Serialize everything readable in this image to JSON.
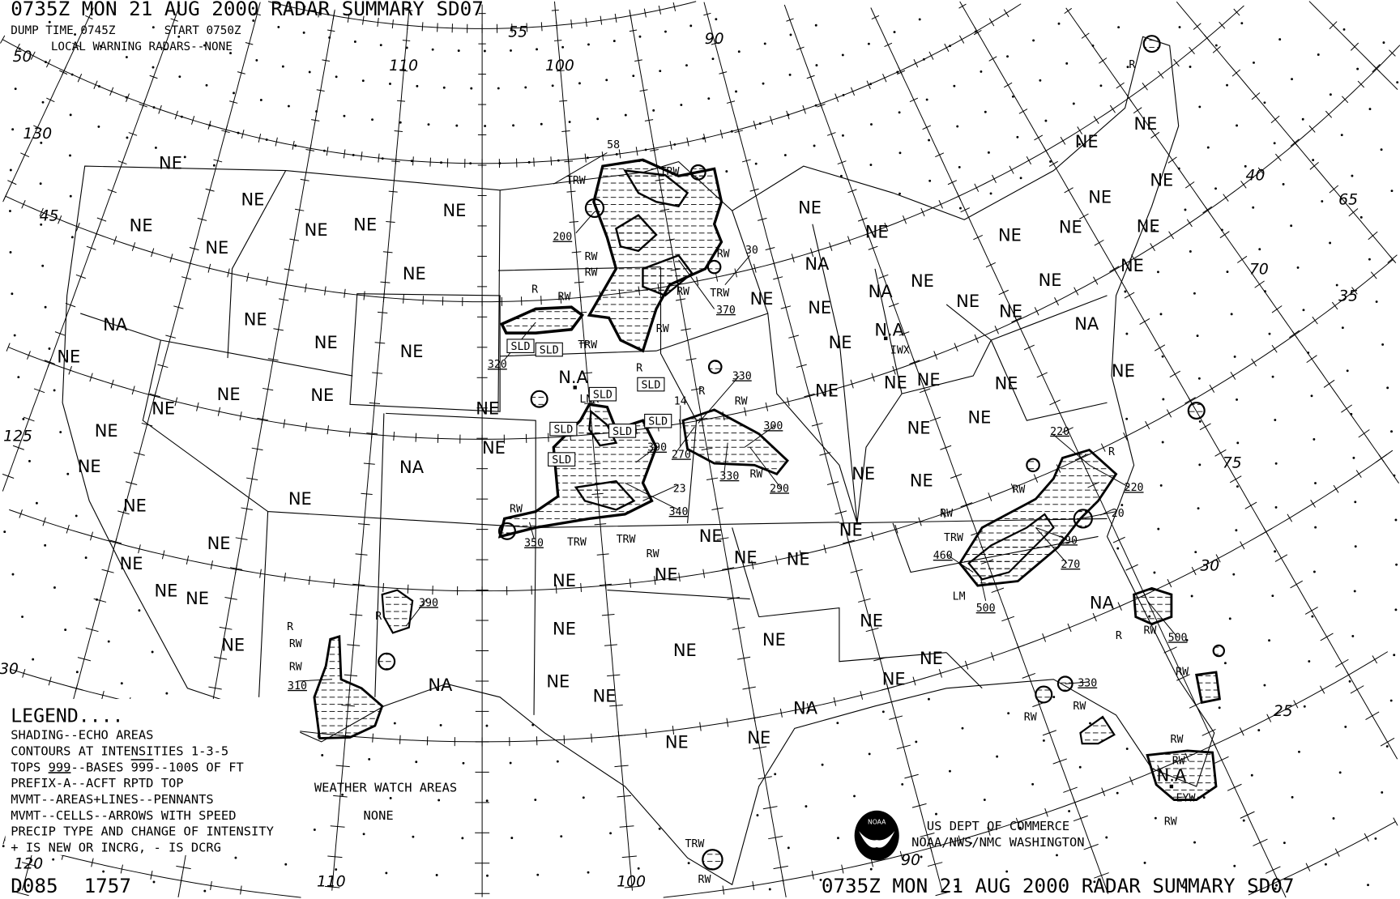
{
  "header": {
    "title_top": "0735Z MON 21 AUG 2000 RADAR SUMMARY   SD07",
    "dump_time": "DUMP TIME 0745Z",
    "start_time": "START 0750Z",
    "local_warning": "LOCAL WARNING RADARS--NONE"
  },
  "legend": {
    "title": "LEGEND....",
    "shading": "SHADING--ECHO AREAS",
    "contours": "CONTOURS AT INTENSITIES 1-3-5",
    "tops_prefix": "TOPS ",
    "tops_value": "999",
    "bases_prefix": "--BASES ",
    "bases_value": "999",
    "tops_suffix": "--100S OF FT",
    "prefix": "PREFIX-A--ACFT RPTD TOP",
    "mvmt_areas": "MVMT--AREAS+LINES--PENNANTS",
    "mvmt_cells": "MVMT--CELLS--ARROWS WITH SPEED",
    "precip": "PRECIP TYPE AND CHANGE OF INTENSITY",
    "change": "+ IS NEW OR INCRG, - IS DCRG"
  },
  "watch": {
    "title": "WEATHER WATCH AREAS",
    "value": "NONE"
  },
  "footer": {
    "chart_id": "D085",
    "chart_number": "1757",
    "agency_line1": "US DEPT OF COMMERCE",
    "agency_line2": "NOAA/NWS/NMC WASHINGTON",
    "logo_text": "NOAA",
    "title_bottom": "0735Z MON 21 AUG 2000 RADAR SUMMARY  SD07"
  },
  "map": {
    "status_labels": [
      "NE",
      "NE",
      "NE",
      "NE",
      "NE",
      "NE",
      "NE",
      "NE",
      "NA",
      "NE",
      "NE",
      "NE",
      "NE",
      "NE",
      "NE",
      "NE",
      "NE",
      "NE",
      "NE",
      "NA",
      "NE",
      "NE",
      "NE",
      "NE",
      "NE",
      "NE",
      "NE",
      "NE",
      "NA",
      "NE",
      "NE",
      "NE",
      "NE",
      "NE",
      "NE",
      "NA",
      "NE",
      "NE",
      "NE",
      "NE",
      "NE",
      "NE",
      "NE",
      "NE",
      "NE",
      "NA",
      "NE",
      "NE",
      "NE",
      "NE",
      "NE",
      "NE",
      "NE",
      "NE",
      "NA",
      "NE",
      "NA",
      "NE",
      "N.A",
      "NE",
      "NE",
      "NE",
      "NE",
      "NE",
      "NE",
      "NE",
      "NE",
      "NE",
      "NE",
      "NE",
      "NE",
      "NE",
      "NE",
      "NE",
      "NE",
      "NA",
      "NE",
      "N.A",
      "N.A"
    ],
    "precip_labels": [
      "TRW",
      "TRW",
      "58",
      "R",
      "RW",
      "RW",
      "RW",
      "RW",
      "RW",
      "30",
      "TRW",
      "RW",
      "TRW",
      "R",
      "R",
      "RW",
      "14",
      "RW",
      "23",
      "RW",
      "TRW",
      "TRW",
      "RW",
      "R",
      "R",
      "RW",
      "RW",
      "R",
      "RW",
      "RW",
      "20",
      "TRW",
      "LM",
      "R",
      "RW",
      "RW",
      "RW",
      "RW",
      "RW",
      "RW",
      "RW",
      "TRW",
      "RW",
      "R"
    ],
    "tops": [
      "200",
      "370",
      "320",
      "330",
      "300",
      "390",
      "270",
      "330",
      "290",
      "340",
      "350",
      "390",
      "310",
      "220",
      "220",
      "290",
      "460",
      "270",
      "500",
      "500",
      "330"
    ],
    "sld_label": "SLD",
    "stations": [
      "LNX",
      "IWX",
      "EYW"
    ],
    "grid_labels": [
      "55",
      "90",
      "110",
      "100",
      "50",
      "130",
      "45",
      "125",
      "120",
      "30",
      "110",
      "100",
      "90",
      "40",
      "65",
      "70",
      "35",
      "75",
      "30",
      "25"
    ]
  },
  "colors": {
    "ink": "#000000",
    "background": "#ffffff"
  }
}
